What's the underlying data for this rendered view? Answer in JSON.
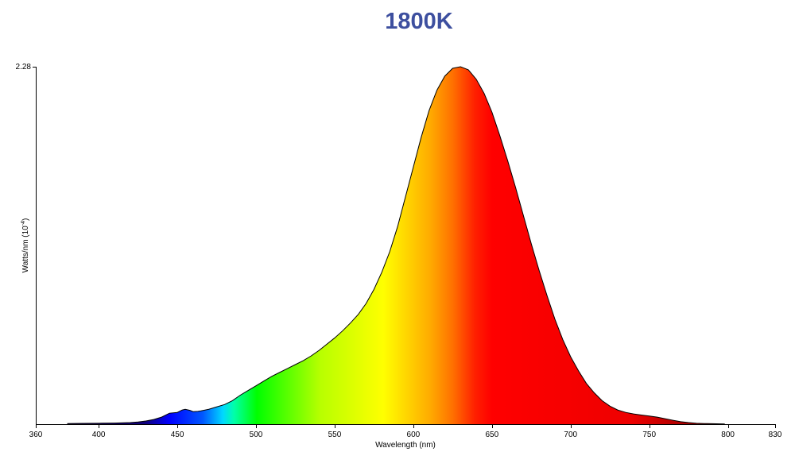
{
  "chart_data": {
    "type": "area",
    "title": "1800K",
    "title_color": "#3d4f9f",
    "xlabel": "Wavelength (nm)",
    "ylabel_main": "Watts/nm (10",
    "ylabel_exp": "-4",
    "ylabel_close": ")",
    "xlim": [
      360,
      830
    ],
    "ylim": [
      0,
      2.28
    ],
    "x_ticks": [
      "360",
      "400",
      "450",
      "500",
      "550",
      "600",
      "650",
      "700",
      "750",
      "800",
      "830"
    ],
    "y_ticks": [
      "2.28"
    ],
    "grid": false,
    "legend": "none",
    "fill": "visible-spectrum gradient",
    "outline_color": "#000000",
    "series": [
      {
        "x": [
          380,
          390,
          400,
          410,
          420,
          425,
          430,
          435,
          440,
          445,
          450,
          453,
          455,
          458,
          460,
          463,
          465,
          470,
          475,
          480,
          485,
          490,
          495,
          500,
          505,
          510,
          515,
          520,
          525,
          530,
          535,
          540,
          545,
          550,
          555,
          560,
          565,
          570,
          575,
          580,
          585,
          590,
          595,
          600,
          605,
          610,
          615,
          620,
          625,
          630,
          635,
          640,
          645,
          650,
          655,
          660,
          665,
          670,
          675,
          680,
          685,
          690,
          695,
          700,
          705,
          710,
          715,
          720,
          725,
          730,
          735,
          740,
          745,
          750,
          755,
          760,
          765,
          770,
          775,
          780,
          785,
          790,
          795,
          798
        ],
        "y": [
          0.004,
          0.005,
          0.006,
          0.007,
          0.01,
          0.014,
          0.02,
          0.03,
          0.045,
          0.07,
          0.075,
          0.09,
          0.095,
          0.088,
          0.08,
          0.082,
          0.085,
          0.095,
          0.11,
          0.125,
          0.15,
          0.185,
          0.215,
          0.245,
          0.275,
          0.305,
          0.33,
          0.355,
          0.38,
          0.405,
          0.435,
          0.47,
          0.51,
          0.55,
          0.595,
          0.645,
          0.7,
          0.77,
          0.86,
          0.97,
          1.1,
          1.26,
          1.45,
          1.64,
          1.83,
          2.0,
          2.13,
          2.22,
          2.27,
          2.28,
          2.26,
          2.2,
          2.11,
          1.99,
          1.84,
          1.68,
          1.51,
          1.33,
          1.15,
          0.98,
          0.82,
          0.67,
          0.54,
          0.43,
          0.34,
          0.26,
          0.2,
          0.15,
          0.115,
          0.09,
          0.075,
          0.065,
          0.058,
          0.052,
          0.045,
          0.035,
          0.025,
          0.016,
          0.01,
          0.006,
          0.004,
          0.003,
          0.002,
          0.001
        ]
      }
    ]
  }
}
